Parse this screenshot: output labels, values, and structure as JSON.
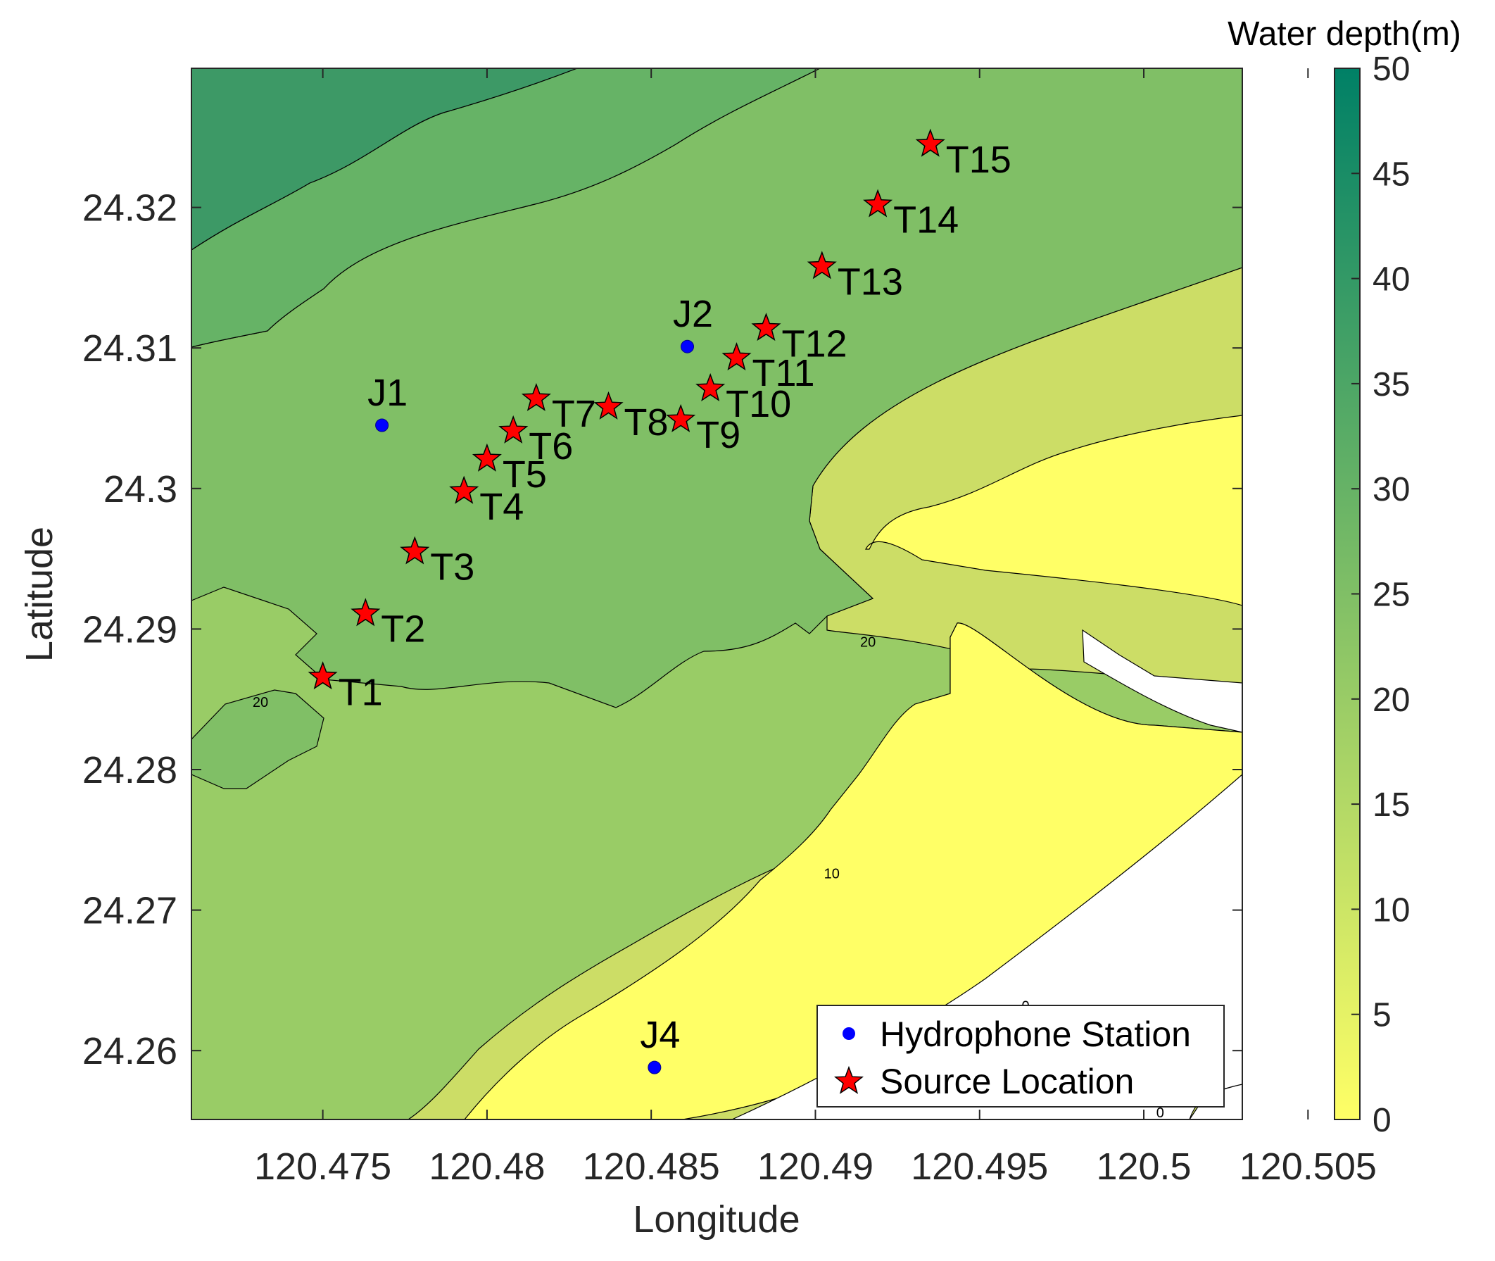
{
  "chart_data": {
    "type": "heatmap",
    "subtype": "filled-contour-map-with-markers",
    "xlabel": "Longitude",
    "ylabel": "Latitude",
    "xlim": [
      120.471,
      120.503
    ],
    "ylim": [
      24.2551,
      24.3299
    ],
    "xticks": [
      "120.475",
      "120.48",
      "120.485",
      "120.49",
      "120.495",
      "120.5",
      "120.505"
    ],
    "xtick_values": [
      120.475,
      120.48,
      120.485,
      120.49,
      120.495,
      120.5,
      120.505
    ],
    "yticks": [
      "24.26",
      "24.27",
      "24.28",
      "24.29",
      "24.3",
      "24.31",
      "24.32"
    ],
    "ytick_values": [
      24.26,
      24.27,
      24.28,
      24.29,
      24.3,
      24.31,
      24.32
    ],
    "colorbar": {
      "title": "Water depth(m)",
      "range": [
        0,
        50
      ],
      "ticks": [
        "0",
        "5",
        "10",
        "15",
        "20",
        "25",
        "30",
        "35",
        "40",
        "45",
        "50"
      ],
      "tick_values": [
        0,
        5,
        10,
        15,
        20,
        25,
        30,
        35,
        40,
        45,
        50
      ],
      "colormap": "summer (reversed)",
      "color_low": "#ffff66",
      "color_high": "#008066"
    },
    "contour_labels": [
      {
        "text": "20",
        "x": 120.4731,
        "y": 24.2848
      },
      {
        "text": "20",
        "x": 120.4916,
        "y": 24.2891
      },
      {
        "text": "10",
        "x": 120.4905,
        "y": 24.2726
      },
      {
        "text": "0",
        "x": 120.4964,
        "y": 24.2632
      },
      {
        "text": "0",
        "x": 120.5005,
        "y": 24.2556
      }
    ],
    "legend": {
      "location": "bottom-right",
      "entries": [
        {
          "label": "Hydrophone Station",
          "marker": "dot",
          "color": "#0000ff"
        },
        {
          "label": "Source Location",
          "marker": "star",
          "color": "#ff0000"
        }
      ]
    },
    "series": [
      {
        "name": "Hydrophone Station",
        "points": [
          {
            "label": "J1",
            "x": 120.4768,
            "y": 24.3045
          },
          {
            "label": "J2",
            "x": 120.4861,
            "y": 24.3101
          },
          {
            "label": "J4",
            "x": 120.4851,
            "y": 24.2588
          }
        ]
      },
      {
        "name": "Source Location",
        "points": [
          {
            "label": "T1",
            "x": 120.475,
            "y": 24.2866
          },
          {
            "label": "T2",
            "x": 120.4763,
            "y": 24.2911
          },
          {
            "label": "T3",
            "x": 120.4778,
            "y": 24.2955
          },
          {
            "label": "T4",
            "x": 120.4793,
            "y": 24.2998
          },
          {
            "label": "T5",
            "x": 120.48,
            "y": 24.3021
          },
          {
            "label": "T6",
            "x": 120.4808,
            "y": 24.3041
          },
          {
            "label": "T7",
            "x": 120.4815,
            "y": 24.3064
          },
          {
            "label": "T8",
            "x": 120.4837,
            "y": 24.3058
          },
          {
            "label": "T9",
            "x": 120.4859,
            "y": 24.3049
          },
          {
            "label": "T10",
            "x": 120.4868,
            "y": 24.3071
          },
          {
            "label": "T11",
            "x": 120.4876,
            "y": 24.3093
          },
          {
            "label": "T12",
            "x": 120.4885,
            "y": 24.3114
          },
          {
            "label": "T13",
            "x": 120.4902,
            "y": 24.3158
          },
          {
            "label": "T14",
            "x": 120.4919,
            "y": 24.3202
          },
          {
            "label": "T15",
            "x": 120.4935,
            "y": 24.3245
          }
        ]
      }
    ]
  }
}
